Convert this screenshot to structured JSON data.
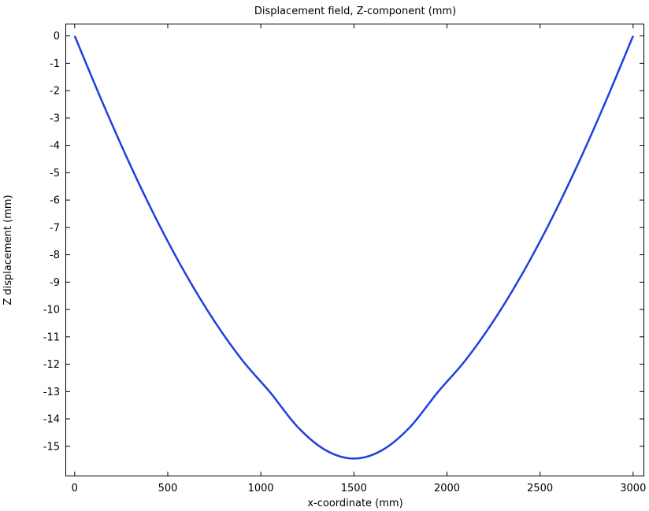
{
  "chart_data": {
    "type": "line",
    "title": "Displacement field, Z-component (mm)",
    "xlabel": "x-coordinate (mm)",
    "ylabel": "Z displacement (mm)",
    "xlim": [
      -50,
      3060
    ],
    "ylim": [
      -16.1,
      0.45
    ],
    "xticks": [
      0,
      500,
      1000,
      1500,
      2000,
      2500,
      3000
    ],
    "yticks": [
      0,
      -1,
      -2,
      -3,
      -4,
      -5,
      -6,
      -7,
      -8,
      -9,
      -10,
      -11,
      -12,
      -13,
      -14,
      -15
    ],
    "xtick_labels": [
      "0",
      "500",
      "1000",
      "1500",
      "2000",
      "2500",
      "3000"
    ],
    "ytick_labels": [
      "0",
      "-1",
      "-2",
      "-3",
      "-4",
      "-5",
      "-6",
      "-7",
      "-8",
      "-9",
      "-10",
      "-11",
      "-12",
      "-13",
      "-14",
      "-15"
    ],
    "grid": true,
    "series": [
      {
        "color": "#1f3fe0",
        "x": [
          0,
          150,
          300,
          450,
          600,
          750,
          900,
          1050,
          1200,
          1350,
          1500,
          1650,
          1800,
          1950,
          2100,
          2250,
          2400,
          2550,
          2700,
          2850,
          3000
        ],
        "y": [
          0,
          -2.44,
          -4.74,
          -6.85,
          -8.75,
          -10.42,
          -11.85,
          -13.03,
          -14.31,
          -15.15,
          -15.45,
          -15.15,
          -14.31,
          -13.03,
          -11.85,
          -10.42,
          -8.75,
          -6.85,
          -4.74,
          -2.44,
          0
        ]
      }
    ]
  }
}
